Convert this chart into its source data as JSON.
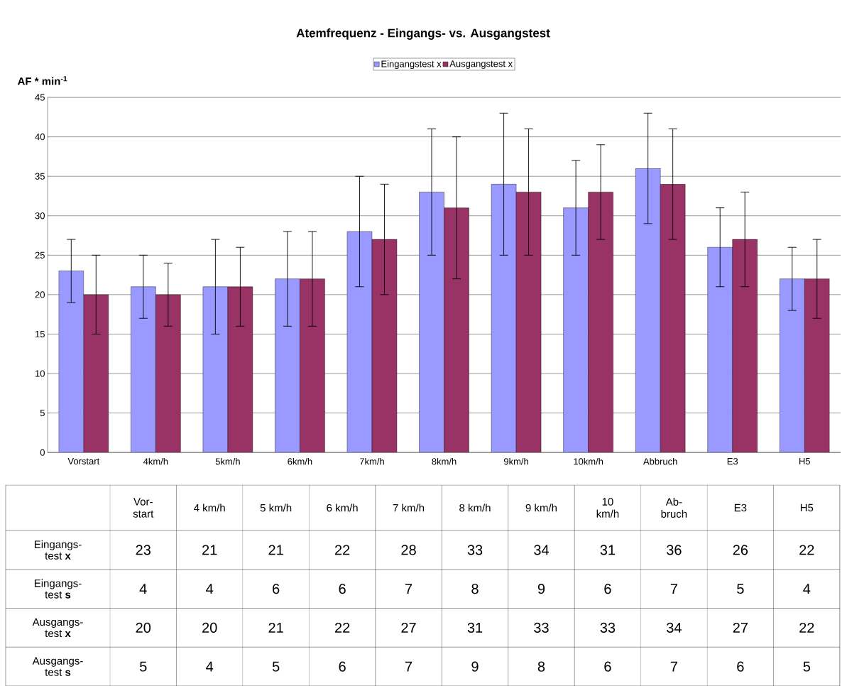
{
  "chart_data": {
    "type": "bar",
    "title": "Atemfrequenz - Eingangs- vs. Ausgangstest",
    "ylabel": "AF * min$^{-1}$",
    "categories": [
      "Vorstart",
      "4km/h",
      "5km/h",
      "6km/h",
      "7km/h",
      "8km/h",
      "9km/h",
      "10km/h",
      "Abbruch",
      "E3",
      "H5"
    ],
    "series": [
      {
        "name": "Eingangstest  x",
        "color": "#9999ff",
        "values": [
          23,
          21,
          21,
          22,
          28,
          33,
          34,
          31,
          36,
          26,
          22
        ],
        "errors": [
          4,
          4,
          6,
          6,
          7,
          8,
          9,
          6,
          7,
          5,
          4
        ]
      },
      {
        "name": "Ausgangstest x",
        "color": "#993366",
        "values": [
          20,
          20,
          21,
          22,
          27,
          31,
          33,
          33,
          34,
          27,
          22
        ],
        "errors": [
          5,
          4,
          5,
          6,
          7,
          9,
          8,
          6,
          7,
          6,
          5
        ]
      }
    ],
    "ylim": [
      0,
      45
    ],
    "yticks": [
      0,
      5,
      10,
      15,
      20,
      25,
      30,
      35,
      40,
      45
    ],
    "grid": "y",
    "legend": "top",
    "annotations": [
      "Vor-start",
      "4 km/h",
      "5 km/h",
      "6 km/h",
      "7 km/h",
      "8 km/h",
      "9 km/h",
      "10 km/h",
      "Ab-bruch",
      "E3",
      "H5",
      "Eingangs-test **x**",
      "23",
      "21",
      "21",
      "22",
      "28",
      "33",
      "34",
      "31",
      "36",
      "26",
      "22",
      "Eingangs-test **s**",
      "4",
      "4",
      "6",
      "6",
      "7",
      "8",
      "9",
      "6",
      "7",
      "5",
      "4",
      "Ausgangs-test **x**",
      "20",
      "20",
      "21",
      "22",
      "27",
      "31",
      "33",
      "33",
      "34",
      "27",
      "22",
      "Ausgangs-test **s**",
      "5",
      "4",
      "5",
      "6",
      "7",
      "9",
      "8",
      "6",
      "7",
      "6",
      "5"
    ]
  }
}
